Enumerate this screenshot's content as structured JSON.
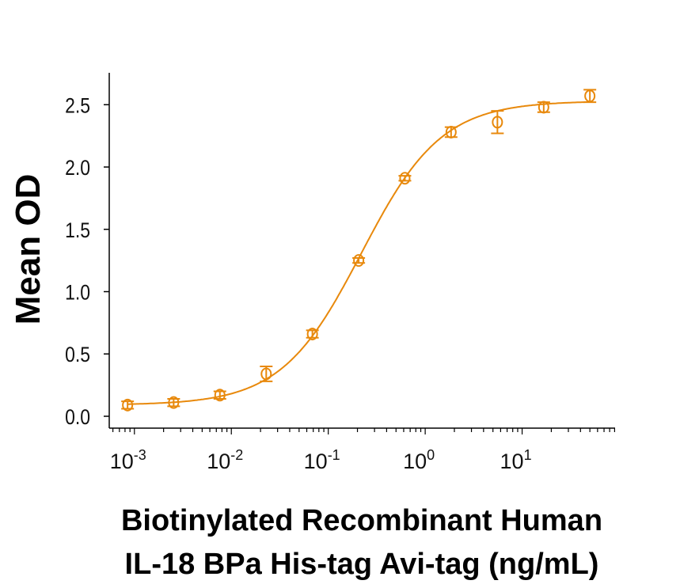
{
  "chart_data": {
    "type": "scatter",
    "xlabel_lines": [
      "Biotinylated Recombinant Human",
      "IL-18 BPa His-tag Avi-tag (ng/mL)"
    ],
    "ylabel": "Mean OD",
    "x_scale": "log",
    "xlim": [
      0.00055,
      91
    ],
    "ylim": [
      -0.1,
      2.75
    ],
    "x_ticks": [
      {
        "value": 0.001,
        "base": "10",
        "exp": "-3"
      },
      {
        "value": 0.01,
        "base": "10",
        "exp": "-2"
      },
      {
        "value": 0.1,
        "base": "10",
        "exp": "-1"
      },
      {
        "value": 1,
        "base": "10",
        "exp": "0"
      },
      {
        "value": 10,
        "base": "10",
        "exp": "1"
      }
    ],
    "y_ticks": [
      "0.0",
      "0.5",
      "1.0",
      "1.5",
      "2.0",
      "2.5"
    ],
    "grid": false,
    "color": "#E8890C",
    "series": [
      {
        "x": [
          0.00085,
          0.00254,
          0.00762,
          0.0229,
          0.0686,
          0.206,
          0.617,
          1.85,
          5.56,
          16.7,
          50
        ],
        "y": [
          0.09,
          0.11,
          0.17,
          0.34,
          0.66,
          1.25,
          1.91,
          2.28,
          2.36,
          2.48,
          2.57
        ],
        "error": [
          0.03,
          0.03,
          0.03,
          0.06,
          0.03,
          0.02,
          0.02,
          0.04,
          0.09,
          0.04,
          0.05
        ],
        "fit": "four-parameter logistic curve"
      }
    ]
  }
}
